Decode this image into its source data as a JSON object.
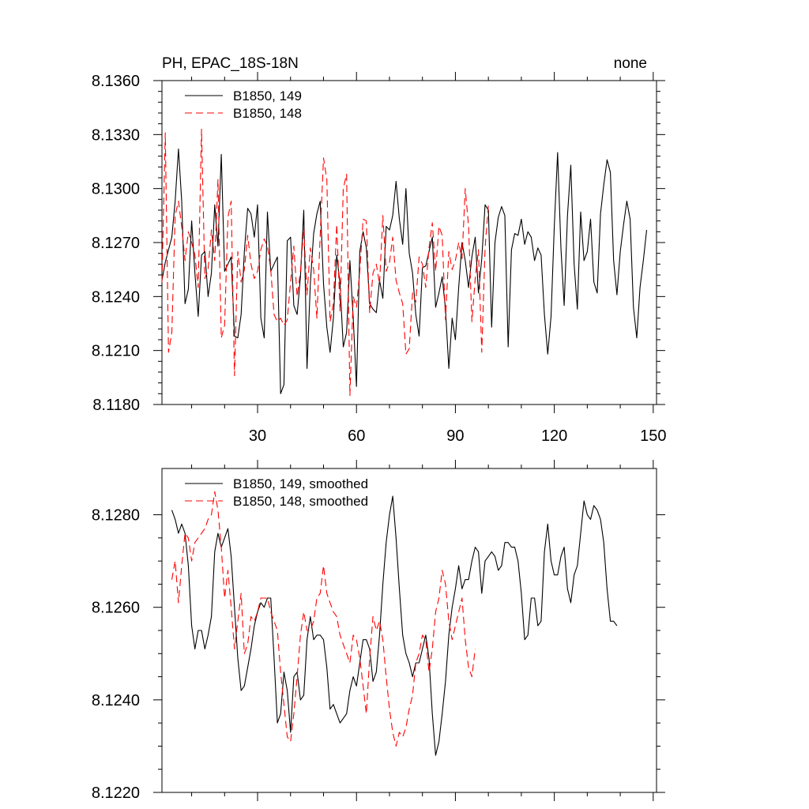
{
  "chart_data": [
    {
      "type": "line",
      "title": "PH, EPAC_18S-18N",
      "right_title": "none",
      "xlabel": "",
      "ylabel": "",
      "xlim": [
        1,
        151
      ],
      "ylim": [
        8.118,
        8.136
      ],
      "xticks": [
        30,
        60,
        90,
        120,
        150
      ],
      "xtick_labels": [
        "30",
        "60",
        "90",
        "120",
        "150"
      ],
      "yticks": [
        8.118,
        8.121,
        8.124,
        8.127,
        8.13,
        8.133,
        8.136
      ],
      "ytick_labels": [
        "8.1180",
        "8.1210",
        "8.1240",
        "8.1270",
        "8.1300",
        "8.1330",
        "8.1360"
      ],
      "legend_position": "top-left",
      "series": [
        {
          "name": "B1850, 149",
          "color": "#000000",
          "dash": "solid",
          "x_start": 1,
          "values": [
            8.1249,
            8.1259,
            8.1266,
            8.1273,
            8.1293,
            8.1322,
            8.1293,
            8.1236,
            8.1244,
            8.1282,
            8.1253,
            8.1229,
            8.1263,
            8.1265,
            8.124,
            8.1253,
            8.1291,
            8.1268,
            8.1319,
            8.1254,
            8.1258,
            8.1262,
            8.1218,
            8.1217,
            8.123,
            8.1265,
            8.1289,
            8.1286,
            8.1273,
            8.1291,
            8.1228,
            8.1217,
            8.1287,
            8.1254,
            8.1258,
            8.1262,
            8.1186,
            8.1191,
            8.1271,
            8.1273,
            8.1235,
            8.123,
            8.1251,
            8.1288,
            8.12,
            8.1247,
            8.1275,
            8.1286,
            8.1293,
            8.1247,
            8.1223,
            8.1209,
            8.1228,
            8.1263,
            8.1247,
            8.1212,
            8.122,
            8.126,
            8.1228,
            8.119,
            8.1265,
            8.1276,
            8.1267,
            8.1236,
            8.1233,
            8.1231,
            8.1249,
            8.1239,
            8.1279,
            8.1277,
            8.1285,
            8.1304,
            8.1283,
            8.1269,
            8.13,
            8.1264,
            8.1253,
            8.123,
            8.1218,
            8.1256,
            8.1257,
            8.1265,
            8.1273,
            8.1234,
            8.1242,
            8.1251,
            8.1233,
            8.12,
            8.1228,
            8.1216,
            8.1245,
            8.127,
            8.126,
            8.1245,
            8.1262,
            8.1273,
            8.1242,
            8.1261,
            8.1291,
            8.1288,
            8.1223,
            8.127,
            8.1284,
            8.129,
            8.1285,
            8.1212,
            8.1266,
            8.1275,
            8.1274,
            8.1283,
            8.1269,
            8.1276,
            8.1273,
            8.126,
            8.1267,
            8.1263,
            8.123,
            8.1208,
            8.1229,
            8.1279,
            8.132,
            8.1267,
            8.1235,
            8.1285,
            8.1313,
            8.1258,
            8.1233,
            8.1287,
            8.126,
            8.1265,
            8.1283,
            8.1248,
            8.1242,
            8.1286,
            8.1302,
            8.1316,
            8.1309,
            8.126,
            8.1241,
            8.1265,
            8.128,
            8.1293,
            8.1283,
            8.1234,
            8.1217,
            8.1245,
            8.126,
            8.1277
          ]
        },
        {
          "name": "B1850, 148",
          "color": "#ff0000",
          "dash": "dashed",
          "x_start": 1,
          "values": [
            8.1248,
            8.1331,
            8.1209,
            8.122,
            8.1285,
            8.1293,
            8.1279,
            8.126,
            8.1276,
            8.127,
            8.1263,
            8.1245,
            8.1333,
            8.125,
            8.1255,
            8.1277,
            8.126,
            8.1305,
            8.1217,
            8.1224,
            8.1284,
            8.1293,
            8.1196,
            8.1265,
            8.1248,
            8.1255,
            8.1274,
            8.1258,
            8.125,
            8.1254,
            8.1266,
            8.1272,
            8.1268,
            8.1255,
            8.123,
            8.1226,
            8.1228,
            8.1224,
            8.1227,
            8.1248,
            8.1268,
            8.124,
            8.1254,
            8.1278,
            8.1241,
            8.1267,
            8.1255,
            8.1228,
            8.1274,
            8.1317,
            8.1305,
            8.1226,
            8.1236,
            8.128,
            8.1232,
            8.13,
            8.1308,
            8.1185,
            8.124,
            8.1234,
            8.1254,
            8.1283,
            8.1282,
            8.1231,
            8.1253,
            8.1258,
            8.1247,
            8.1285,
            8.1254,
            8.1259,
            8.1273,
            8.1249,
            8.1242,
            8.1236,
            8.1208,
            8.1211,
            8.1242,
            8.1237,
            8.1262,
            8.1258,
            8.1245,
            8.1267,
            8.1281,
            8.1254,
            8.1279,
            8.1274,
            8.1227,
            8.1265,
            8.1255,
            8.126,
            8.127,
            8.1261,
            8.13,
            8.1279,
            8.1226,
            8.125,
            8.1266,
            8.1209,
            8.1267,
            8.1291
          ]
        }
      ]
    },
    {
      "type": "line",
      "title": "",
      "xlabel": "",
      "ylabel": "",
      "xlim": [
        1,
        151
      ],
      "ylim": [
        8.122,
        8.129
      ],
      "xticks": [
        30,
        60,
        90,
        120,
        150
      ],
      "yticks": [
        8.122,
        8.124,
        8.126,
        8.128
      ],
      "ytick_labels": [
        "8.1220",
        "8.1240",
        "8.1260",
        "8.1280"
      ],
      "legend_position": "top-left",
      "series": [
        {
          "name": "B1850, 149, smoothed",
          "color": "#000000",
          "dash": "solid",
          "x_start": 4,
          "values": [
            8.1281,
            8.1279,
            8.1276,
            8.1278,
            8.1276,
            8.1269,
            8.1256,
            8.1251,
            8.1255,
            8.1255,
            8.1251,
            8.1254,
            8.1258,
            8.1272,
            8.1276,
            8.1273,
            8.1275,
            8.1277,
            8.1271,
            8.126,
            8.1249,
            8.1242,
            8.1243,
            8.1247,
            8.1251,
            8.1256,
            8.1259,
            8.1261,
            8.126,
            8.1262,
            8.1262,
            8.1249,
            8.1235,
            8.1237,
            8.1246,
            8.1242,
            8.1233,
            8.1245,
            8.1246,
            8.124,
            8.1241,
            8.1253,
            8.1258,
            8.1253,
            8.1254,
            8.1254,
            8.1253,
            8.1247,
            8.1238,
            8.1239,
            8.1237,
            8.1235,
            8.1236,
            8.1237,
            8.1242,
            8.1245,
            8.1243,
            8.1248,
            8.1253,
            8.1253,
            8.1251,
            8.1244,
            8.1246,
            8.1254,
            8.1265,
            8.1274,
            8.128,
            8.1284,
            8.1275,
            8.1264,
            8.1254,
            8.125,
            8.1248,
            8.1245,
            8.1248,
            8.1248,
            8.1251,
            8.1254,
            8.1249,
            8.1237,
            8.1228,
            8.1231,
            8.1237,
            8.1244,
            8.1254,
            8.126,
            8.1264,
            8.1269,
            8.1264,
            8.1266,
            8.1266,
            8.127,
            8.1273,
            8.1272,
            8.1263,
            8.127,
            8.1271,
            8.1272,
            8.1271,
            8.1268,
            8.1269,
            8.1274,
            8.1274,
            8.1273,
            8.1273,
            8.127,
            8.1263,
            8.1253,
            8.1254,
            8.1262,
            8.1262,
            8.1256,
            8.1257,
            8.1272,
            8.1278,
            8.127,
            8.1267,
            8.1267,
            8.1271,
            8.1273,
            8.1264,
            8.1261,
            8.1267,
            8.1269,
            8.1276,
            8.1283,
            8.128,
            8.1279,
            8.1282,
            8.1281,
            8.1279,
            8.1274,
            8.1264,
            8.1257,
            8.1257,
            8.1256
          ]
        },
        {
          "name": "B1850, 148, smoothed",
          "color": "#ff0000",
          "dash": "dashed",
          "x_start": 4,
          "values": [
            8.1266,
            8.127,
            8.1261,
            8.1269,
            8.1276,
            8.1275,
            8.127,
            8.1274,
            8.1275,
            8.1276,
            8.1277,
            8.1279,
            8.128,
            8.1285,
            8.1281,
            8.1273,
            8.1262,
            8.1268,
            8.126,
            8.1251,
            8.1257,
            8.1263,
            8.125,
            8.1252,
            8.1258,
            8.1257,
            8.1259,
            8.1262,
            8.1262,
            8.1262,
            8.1259,
            8.1257,
            8.1255,
            8.1246,
            8.1239,
            8.1232,
            8.1231,
            8.1237,
            8.1245,
            8.1254,
            8.1259,
            8.1255,
            8.1255,
            8.1257,
            8.1262,
            8.1263,
            8.1269,
            8.1263,
            8.1261,
            8.1259,
            8.1258,
            8.1254,
            8.1252,
            8.125,
            8.1248,
            8.1254,
            8.1253,
            8.1249,
            8.1243,
            8.1237,
            8.1249,
            8.1258,
            8.1255,
            8.1257,
            8.1253,
            8.1245,
            8.1238,
            8.1233,
            8.123,
            8.1233,
            8.1232,
            8.1234,
            8.1238,
            8.1241,
            8.1248,
            8.125,
            8.1254,
            8.1253,
            8.1246,
            8.1251,
            8.1259,
            8.1262,
            8.1268,
            8.1265,
            8.1257,
            8.1253,
            8.1256,
            8.1259,
            8.1262,
            8.1253,
            8.1247,
            8.1245,
            8.1251
          ]
        }
      ]
    }
  ]
}
